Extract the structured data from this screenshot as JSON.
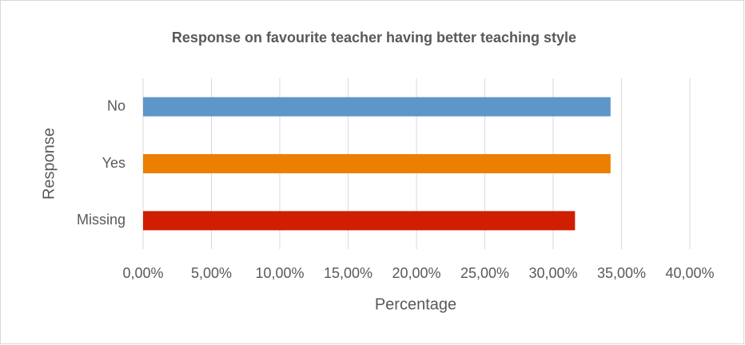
{
  "chart_data": {
    "type": "hbar",
    "title": "Response on favourite teacher having better teaching style",
    "xlabel": "Percentage",
    "ylabel": "Response",
    "categories": [
      "No",
      "Yes",
      "Missing"
    ],
    "values": [
      34.2,
      34.2,
      31.6
    ],
    "colors": [
      "#5f96c9",
      "#ec7f00",
      "#cf1f00"
    ],
    "xlim": [
      0,
      40
    ],
    "xticks": [
      {
        "value": 0,
        "label": "0,00%"
      },
      {
        "value": 5,
        "label": "5,00%"
      },
      {
        "value": 10,
        "label": "10,00%"
      },
      {
        "value": 15,
        "label": "15,00%"
      },
      {
        "value": 20,
        "label": "20,00%"
      },
      {
        "value": 25,
        "label": "25,00%"
      },
      {
        "value": 30,
        "label": "30,00%"
      },
      {
        "value": 35,
        "label": "35,00%"
      },
      {
        "value": 40,
        "label": "40,00%"
      }
    ],
    "grid": true
  }
}
